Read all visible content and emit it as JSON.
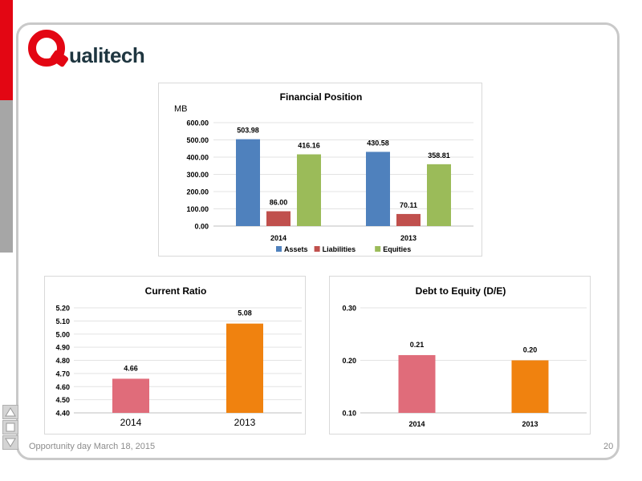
{
  "brand": {
    "logo_text": "ualitech",
    "accent": "#e30613",
    "text_color": "#1f3640"
  },
  "footer": {
    "caption": "Opportunity day March 18, 2015",
    "page_number": "20"
  },
  "nav_icons": [
    "arrow-up-icon",
    "square-icon",
    "arrow-down-icon"
  ],
  "chart_data": [
    {
      "id": "financial-position",
      "type": "bar",
      "title": "Financial Position",
      "unit_label": "MB",
      "categories": [
        "2014",
        "2013"
      ],
      "series": [
        {
          "name": "Assets",
          "values": [
            503.98,
            430.58
          ],
          "labels": [
            "503.98",
            "430.58"
          ],
          "color": "#4f81bd"
        },
        {
          "name": "Liabilities",
          "values": [
            86.0,
            70.11
          ],
          "labels": [
            "86.00",
            "70.11"
          ],
          "color": "#c0504d"
        },
        {
          "name": "Equities",
          "values": [
            416.16,
            358.81
          ],
          "labels": [
            "416.16",
            "358.81"
          ],
          "color": "#9bbb59"
        }
      ],
      "ylim": [
        0,
        600
      ],
      "yticks": [
        "0.00",
        "100.00",
        "200.00",
        "300.00",
        "400.00",
        "500.00",
        "600.00"
      ],
      "grid": true,
      "legend": "bottom"
    },
    {
      "id": "current-ratio",
      "type": "bar",
      "title": "Current Ratio",
      "categories": [
        "2014",
        "2013"
      ],
      "values": [
        4.66,
        5.08
      ],
      "labels": [
        "4.66",
        "5.08"
      ],
      "colors": [
        "#e06c7a",
        "#f0820f"
      ],
      "ylim": [
        4.4,
        5.2
      ],
      "yticks": [
        "4.40",
        "4.50",
        "4.60",
        "4.70",
        "4.80",
        "4.90",
        "5.00",
        "5.10",
        "5.20"
      ],
      "grid": true
    },
    {
      "id": "debt-to-equity",
      "type": "bar",
      "title": "Debt to Equity (D/E)",
      "categories": [
        "2014",
        "2013"
      ],
      "values": [
        0.21,
        0.2
      ],
      "labels": [
        "0.21",
        "0.20"
      ],
      "colors": [
        "#e06c7a",
        "#f0820f"
      ],
      "ylim": [
        0.1,
        0.3
      ],
      "yticks": [
        "0.10",
        "0.20",
        "0.30"
      ],
      "grid": true
    }
  ]
}
